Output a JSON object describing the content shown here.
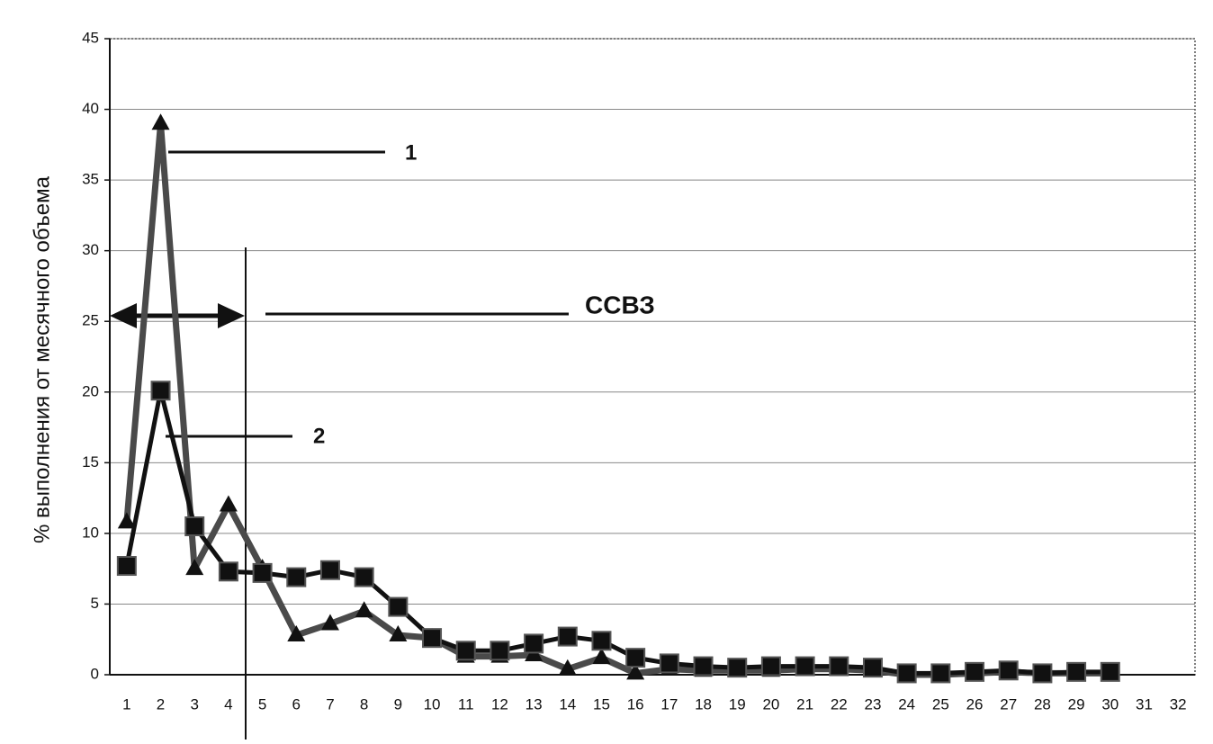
{
  "chart_data": {
    "type": "line",
    "y_label": "% выполнения от месячного объема",
    "categories": [
      "1",
      "2",
      "3",
      "4",
      "5",
      "6",
      "7",
      "8",
      "9",
      "10",
      "11",
      "12",
      "13",
      "14",
      "15",
      "16",
      "17",
      "18",
      "19",
      "20",
      "21",
      "22",
      "23",
      "24",
      "25",
      "26",
      "27",
      "28",
      "29",
      "30",
      "31",
      "32"
    ],
    "series": [
      {
        "name": "1",
        "color": "#4a4a4a",
        "marker": "triangle",
        "values": [
          10.8,
          39,
          7.5,
          12,
          7.5,
          2.8,
          3.6,
          4.5,
          2.8,
          2.6,
          1.3,
          1.3,
          1.4,
          0.4,
          1.2,
          0.1,
          0.4,
          0.3,
          0.3,
          0.3,
          0.4,
          0.4,
          0.3,
          0,
          0,
          0.1,
          0.2,
          0.1,
          0.1,
          0.1,
          null,
          null
        ]
      },
      {
        "name": "2",
        "color": "#111111",
        "marker": "square",
        "values": [
          7.7,
          20.1,
          10.5,
          7.3,
          7.2,
          6.9,
          7.4,
          6.9,
          4.8,
          2.6,
          1.7,
          1.7,
          2.2,
          2.7,
          2.4,
          1.2,
          0.8,
          0.6,
          0.5,
          0.6,
          0.6,
          0.6,
          0.5,
          0.1,
          0.1,
          0.2,
          0.3,
          0.1,
          0.2,
          0.2,
          null,
          null
        ]
      }
    ],
    "annotation": "ССВЗ",
    "ylim": [
      0,
      45
    ],
    "yticks": [
      0,
      5,
      10,
      15,
      20,
      25,
      30,
      35,
      40,
      45
    ],
    "grid": true
  }
}
